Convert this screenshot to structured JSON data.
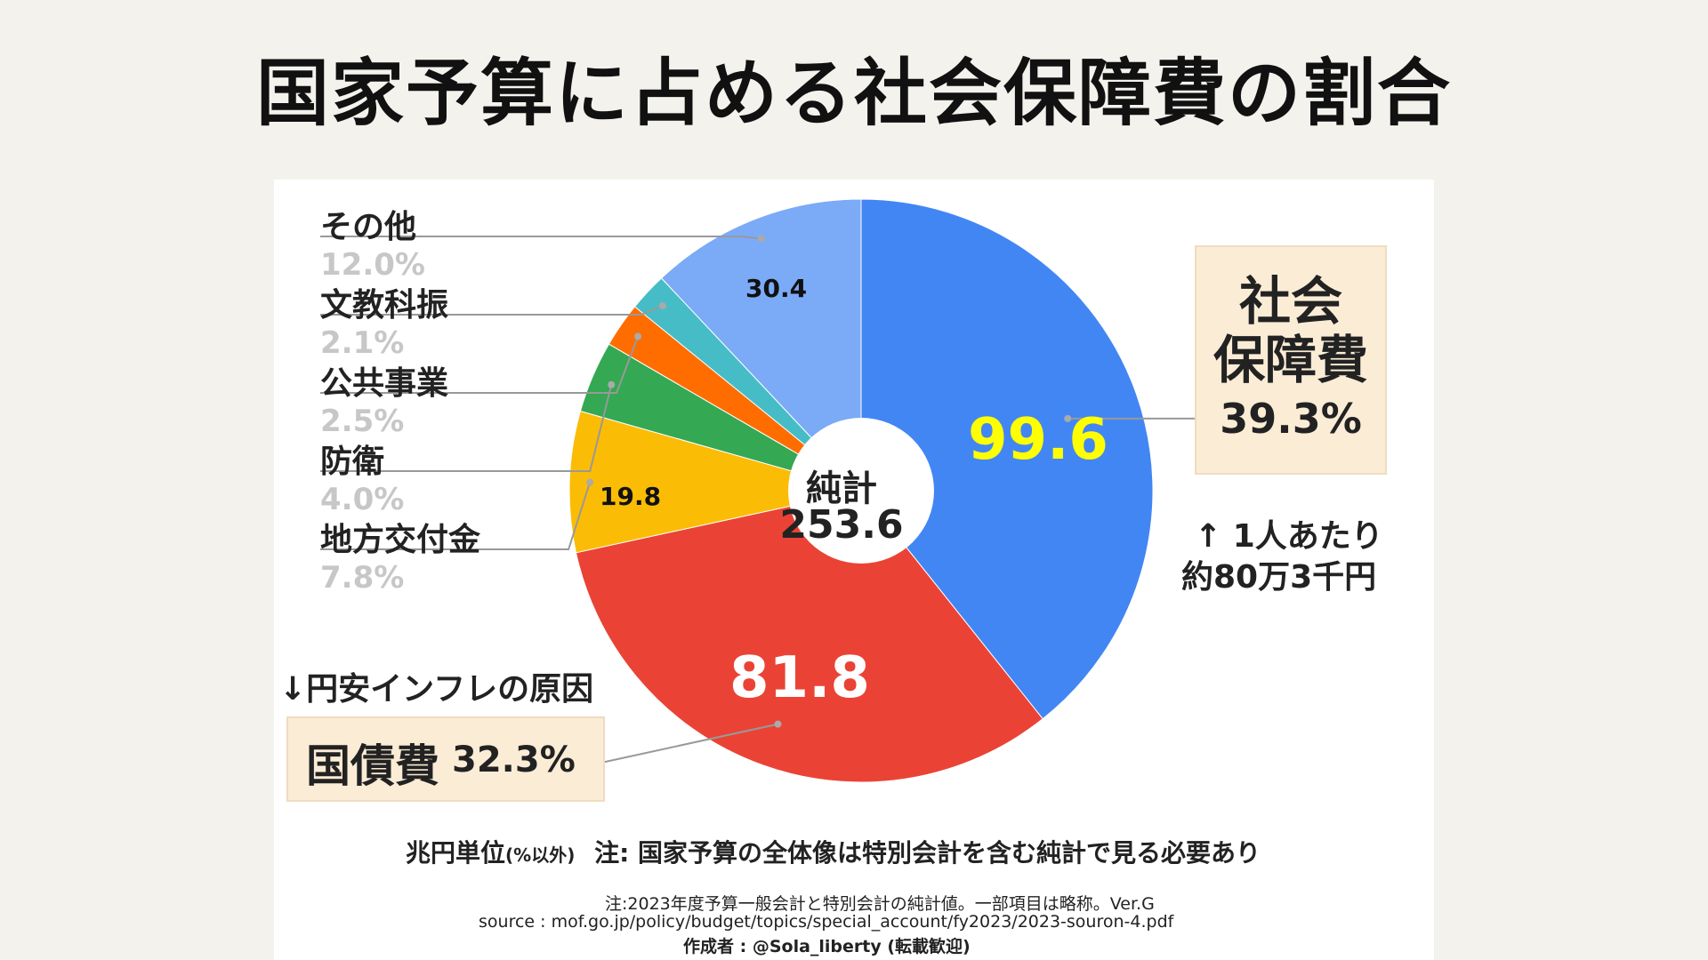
{
  "page": {
    "title": "国家予算に占める社会保障費の割合"
  },
  "chart_data": {
    "type": "pie",
    "title": "国家予算に占める社会保障費の割合",
    "unit_note": "兆円単位",
    "unit_note_sub": "(%以外)",
    "center_label": "純計",
    "total": "253.6",
    "slices": [
      {
        "name": "社会保障費",
        "value": 99.6,
        "percent": "39.3%",
        "color": "#4286f4"
      },
      {
        "name": "国債費",
        "value": 81.8,
        "percent": "32.3%",
        "color": "#ea4335"
      },
      {
        "name": "地方交付金",
        "value": 19.8,
        "percent": "7.8%",
        "color": "#fbbc05"
      },
      {
        "name": "防衛",
        "value": 10.1,
        "percent": "4.0%",
        "color": "#34a853"
      },
      {
        "name": "公共事業",
        "value": 6.3,
        "percent": "2.5%",
        "color": "#ff6d01"
      },
      {
        "name": "文教科振",
        "value": 5.4,
        "percent": "2.1%",
        "color": "#46bdc6"
      },
      {
        "name": "その他",
        "value": 30.4,
        "percent": "12.0%",
        "color": "#7baaf7"
      }
    ],
    "value_labels": [
      "99.6",
      "81.8",
      "19.8",
      "30.4"
    ],
    "annotations": {
      "per_person_line1": "↑ 1人あたり",
      "per_person_line2": "約80万3千円",
      "debt_cause": "↓円安インフレの原因"
    }
  },
  "boxes": {
    "social_line1": "社会",
    "social_line2": "保障費",
    "social_pct": "39.3%",
    "debt_name": "国債費",
    "debt_pct": "32.3%"
  },
  "left_labels": [
    {
      "name": "その他",
      "pct": "12.0%"
    },
    {
      "name": "文教科振",
      "pct": "2.1%"
    },
    {
      "name": "公共事業",
      "pct": "2.5%"
    },
    {
      "name": "防衛",
      "pct": "4.0%"
    },
    {
      "name": "地方交付金",
      "pct": "7.8%"
    }
  ],
  "footer": {
    "note_main": "注: 国家予算の全体像は特別会計を含む純計で見る必要あり",
    "note_small": "注:2023年度予算一般会計と特別会計の純計値。一部項目は略称。Ver.G",
    "source": "source : mof.go.jp/policy/budget/topics/special_account/fy2023/2023-souron-4.pdf",
    "author": "作成者 : @Sola_liberty (転載歓迎)"
  },
  "colors": {
    "value_label_highlight": "#ffff00",
    "value_label_light": "#ffffff",
    "value_label_dark": "#111111",
    "leader_line": "#999999"
  }
}
